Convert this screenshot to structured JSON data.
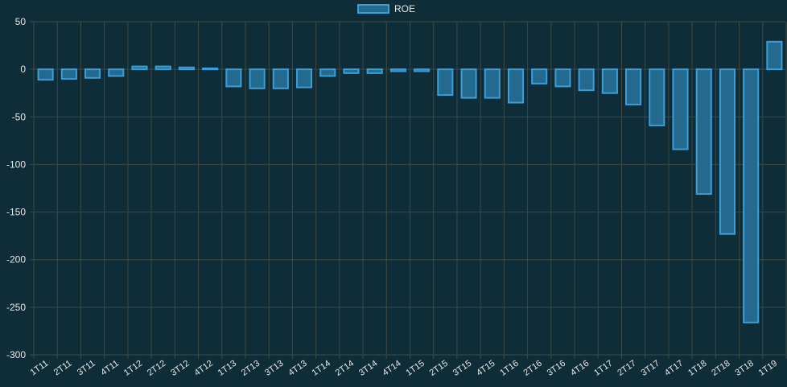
{
  "chart_data": {
    "type": "bar",
    "categories": [
      "1T11",
      "2T11",
      "3T11",
      "4T11",
      "1T12",
      "2T12",
      "3T12",
      "4T12",
      "1T13",
      "2T13",
      "3T13",
      "4T13",
      "1T14",
      "2T14",
      "3T14",
      "4T14",
      "1T15",
      "2T15",
      "3T15",
      "4T15",
      "1T16",
      "2T16",
      "3T16",
      "4T16",
      "1T17",
      "2T17",
      "3T17",
      "4T17",
      "1T18",
      "2T18",
      "3T18",
      "1T19"
    ],
    "series": [
      {
        "name": "ROE",
        "values": [
          -11,
          -10,
          -9,
          -7,
          3,
          3,
          2,
          1,
          -18,
          -20,
          -20,
          -19,
          -7,
          -4,
          -4,
          -2,
          -2,
          -27,
          -30,
          -30,
          -35,
          -15,
          -18,
          -22,
          -25,
          -37,
          -59,
          -84,
          -131,
          -173,
          -266,
          29
        ]
      }
    ],
    "ylim": [
      -300,
      50
    ],
    "yticks": [
      50,
      0,
      -50,
      -100,
      -150,
      -200,
      -250,
      -300
    ],
    "grid": true,
    "legend_position": "top-center"
  },
  "colors": {
    "bar_fill": "#24698e",
    "bar_stroke": "#3a9fd8",
    "grid": "#3d4a45",
    "text": "#e8e8e8",
    "background": "#0f2d38"
  }
}
